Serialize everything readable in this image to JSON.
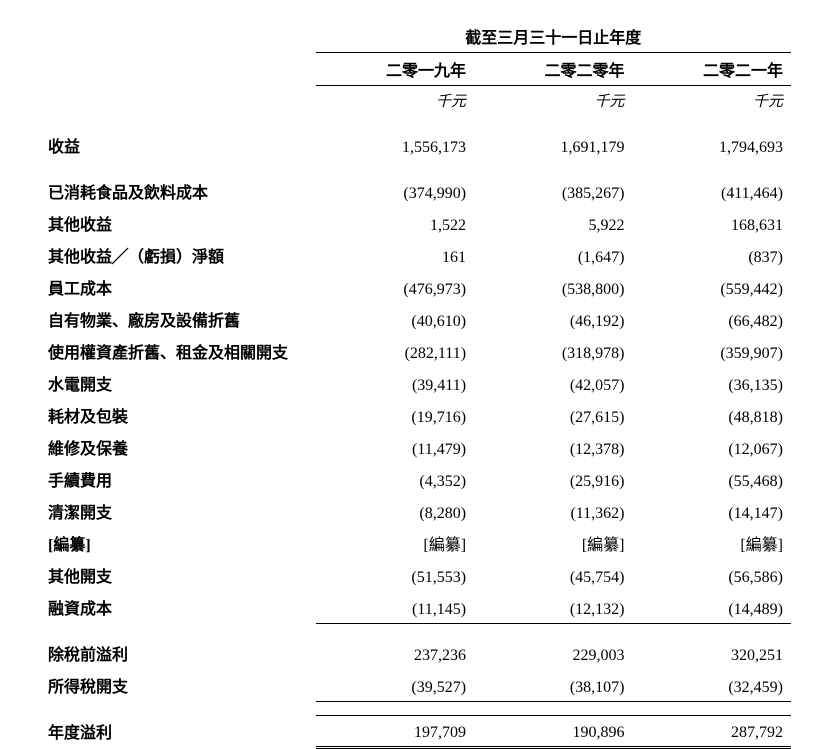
{
  "header": {
    "period_title": "截至三月三十一日止年度",
    "years": [
      "二零一九年",
      "二零二零年",
      "二零二一年"
    ],
    "unit": "千元"
  },
  "rows": [
    {
      "label": "收益",
      "v": [
        "1,556,173",
        "1,691,179",
        "1,794,693"
      ],
      "bold": true,
      "spacer_after": true
    },
    {
      "label": "已消耗食品及飲料成本",
      "v": [
        "(374,990)",
        "(385,267)",
        "(411,464)"
      ],
      "bold": false
    },
    {
      "label": "其他收益",
      "v": [
        "1,522",
        "5,922",
        "168,631"
      ],
      "bold": false
    },
    {
      "label": "其他收益╱（虧損）淨額",
      "v": [
        "161",
        "(1,647)",
        "(837)"
      ],
      "bold": false
    },
    {
      "label": "員工成本",
      "v": [
        "(476,973)",
        "(538,800)",
        "(559,442)"
      ],
      "bold": false
    },
    {
      "label": "自有物業、廠房及設備折舊",
      "v": [
        "(40,610)",
        "(46,192)",
        "(66,482)"
      ],
      "bold": false
    },
    {
      "label": "使用權資產折舊、租金及相關開支",
      "v": [
        "(282,111)",
        "(318,978)",
        "(359,907)"
      ],
      "bold": false
    },
    {
      "label": "水電開支",
      "v": [
        "(39,411)",
        "(42,057)",
        "(36,135)"
      ],
      "bold": false
    },
    {
      "label": "耗材及包裝",
      "v": [
        "(19,716)",
        "(27,615)",
        "(48,818)"
      ],
      "bold": false
    },
    {
      "label": "維修及保養",
      "v": [
        "(11,479)",
        "(12,378)",
        "(12,067)"
      ],
      "bold": false
    },
    {
      "label": "手續費用",
      "v": [
        "(4,352)",
        "(25,916)",
        "(55,468)"
      ],
      "bold": false
    },
    {
      "label": "清潔開支",
      "v": [
        "(8,280)",
        "(11,362)",
        "(14,147)"
      ],
      "bold": false
    },
    {
      "label": "[編纂]",
      "v": [
        "[編纂]",
        "[編纂]",
        "[編纂]"
      ],
      "bold": false
    },
    {
      "label": "其他開支",
      "v": [
        "(51,553)",
        "(45,754)",
        "(56,586)"
      ],
      "bold": false
    },
    {
      "label": "融資成本",
      "v": [
        "(11,145)",
        "(12,132)",
        "(14,489)"
      ],
      "bold": false,
      "subtotal_bottom": true,
      "spacer_after": true
    },
    {
      "label": "除稅前溢利",
      "v": [
        "237,236",
        "229,003",
        "320,251"
      ],
      "bold": true
    },
    {
      "label": "所得稅開支",
      "v": [
        "(39,527)",
        "(38,107)",
        "(32,459)"
      ],
      "bold": false,
      "subtotal_bottom": true,
      "spacer_after": true
    },
    {
      "label": "年度溢利",
      "v": [
        "197,709",
        "190,896",
        "287,792"
      ],
      "bold": true,
      "grand_total": true
    }
  ]
}
